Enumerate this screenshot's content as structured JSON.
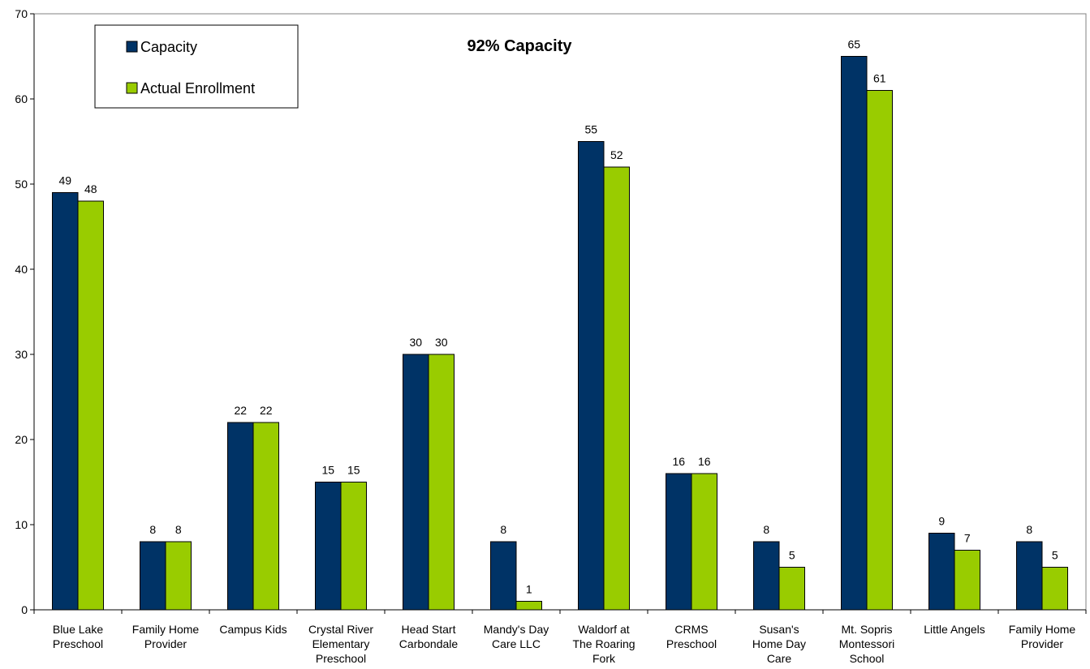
{
  "chart_data": {
    "type": "bar",
    "title": "92% Capacity",
    "xlabel": "",
    "ylabel": "",
    "ylim": [
      0,
      70
    ],
    "yticks": [
      0,
      10,
      20,
      30,
      40,
      50,
      60,
      70
    ],
    "grid": false,
    "legend_position": "top-left",
    "categories": [
      [
        "Blue Lake",
        "Preschool"
      ],
      [
        "Family Home",
        "Provider"
      ],
      [
        "Campus Kids"
      ],
      [
        "Crystal River",
        "Elementary",
        "Preschool"
      ],
      [
        "Head Start",
        "Carbondale"
      ],
      [
        "Mandy's Day",
        "Care LLC"
      ],
      [
        "Waldorf at",
        "The Roaring",
        "Fork"
      ],
      [
        "CRMS",
        "Preschool"
      ],
      [
        "Susan's",
        "Home Day",
        "Care"
      ],
      [
        "Mt. Sopris",
        "Montessori",
        "School"
      ],
      [
        "Little Angels"
      ],
      [
        "Family Home",
        "Provider"
      ]
    ],
    "series": [
      {
        "name": "Capacity",
        "color": "#003366",
        "values": [
          49,
          8,
          22,
          15,
          30,
          8,
          55,
          16,
          8,
          65,
          9,
          8
        ]
      },
      {
        "name": "Actual Enrollment",
        "color": "#99CC00",
        "values": [
          48,
          8,
          22,
          15,
          30,
          1,
          52,
          16,
          5,
          61,
          7,
          5
        ]
      }
    ]
  }
}
